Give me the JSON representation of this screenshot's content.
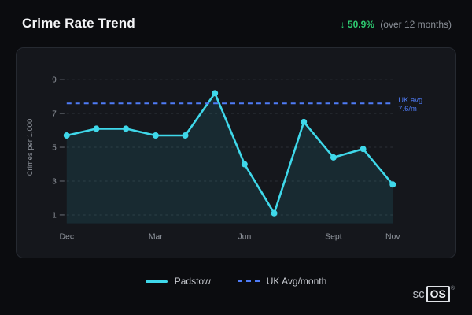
{
  "header": {
    "title": "Crime Rate Trend",
    "delta_arrow": "↓",
    "delta_value": "50.9%",
    "delta_caption": "(over 12 months)"
  },
  "chart_data": {
    "type": "line",
    "title": "Crime Rate Trend",
    "ylabel": "Crimes per 1,000",
    "xlabel": "",
    "n_points": 12,
    "x_ticks": [
      {
        "index": 0,
        "label": "Dec"
      },
      {
        "index": 3,
        "label": "Mar"
      },
      {
        "index": 6,
        "label": "Jun"
      },
      {
        "index": 9,
        "label": "Sept"
      },
      {
        "index": 11,
        "label": "Nov"
      }
    ],
    "yticks": [
      1,
      3,
      5,
      7,
      9
    ],
    "ylim": [
      0.5,
      9.5
    ],
    "grid": "dashed-horizontal",
    "series": [
      {
        "name": "Padstow",
        "color": "#3fd8ea",
        "area_fill": "rgba(63,216,234,0.10)",
        "values": [
          5.7,
          6.1,
          6.1,
          5.7,
          5.7,
          8.2,
          4.0,
          1.1,
          6.5,
          4.4,
          4.9,
          2.8
        ]
      }
    ],
    "reference_line": {
      "name": "UK Avg/month",
      "value": 7.6,
      "color": "#4f7cf7",
      "style": "dashed",
      "label_line1": "UK avg",
      "label_line2": "7.6/m"
    },
    "legend_position": "bottom"
  },
  "legend": [
    {
      "label": "Padstow",
      "style": "solid",
      "color": "#3fd8ea"
    },
    {
      "label": "UK Avg/month",
      "style": "dashed",
      "color": "#4f7cf7"
    }
  ],
  "logo": {
    "prefix": "sc",
    "boxed": "OS",
    "reg": "®"
  },
  "colors": {
    "background": "#0b0c0f",
    "card": "#15171c",
    "accent_cyan": "#3fd8ea",
    "accent_blue": "#4f7cf7",
    "positive_green": "#2ecc71",
    "grid": "#2b2f36",
    "axis_text": "#8f949c"
  }
}
